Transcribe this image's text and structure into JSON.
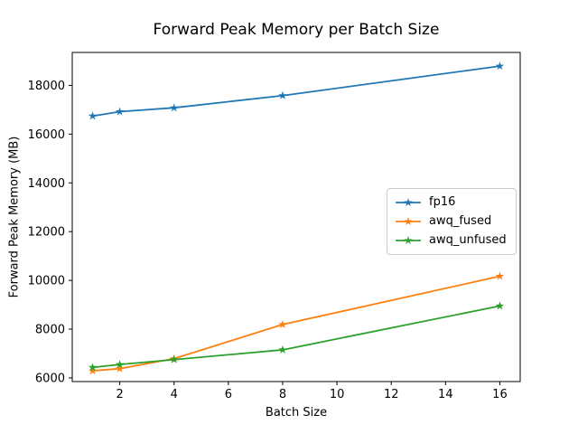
{
  "figure": {
    "background": "#ffffff",
    "frame_color": "#000000",
    "legend_border_color": "#cccccc"
  },
  "chart_data": {
    "type": "line",
    "title": "Forward Peak Memory per Batch Size",
    "xlabel": "Batch Size",
    "ylabel": "Forward Peak Memory (MB)",
    "x": [
      1,
      2,
      4,
      8,
      16
    ],
    "series": [
      {
        "name": "fp16",
        "color": "#1f77b4",
        "values": [
          16740,
          16920,
          17080,
          17580,
          18790
        ]
      },
      {
        "name": "awq_fused",
        "color": "#ff7f0e",
        "values": [
          6290,
          6380,
          6790,
          8190,
          10170
        ]
      },
      {
        "name": "awq_unfused",
        "color": "#2ca02c",
        "values": [
          6430,
          6550,
          6750,
          7150,
          8950
        ]
      }
    ],
    "marker": "star",
    "line_width": 1.8,
    "xlim": [
      0.25,
      16.75
    ],
    "ylim": [
      5850,
      19350
    ],
    "xticks": [
      2,
      4,
      6,
      8,
      10,
      12,
      14,
      16
    ],
    "yticks": [
      6000,
      8000,
      10000,
      12000,
      14000,
      16000,
      18000
    ],
    "grid": false,
    "legend": {
      "position": "center-right",
      "labels": [
        "fp16",
        "awq_fused",
        "awq_unfused"
      ]
    }
  }
}
